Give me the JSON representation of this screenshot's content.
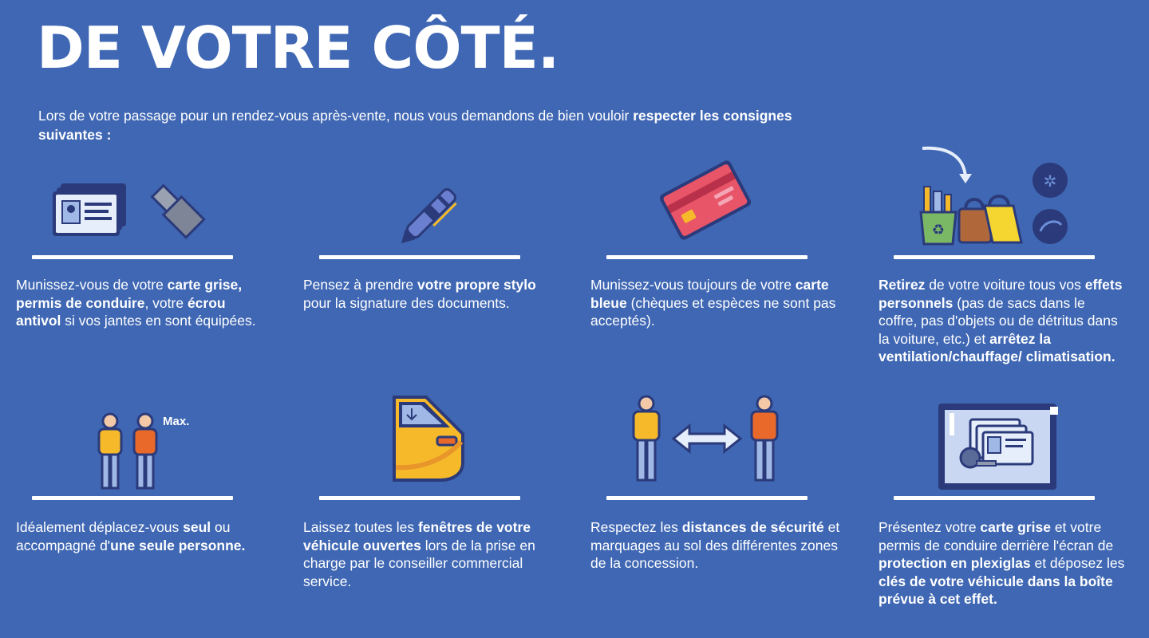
{
  "title": "DE VOTRE CÔTÉ.",
  "intro": {
    "before": "Lors de votre passage pour un rendez-vous après-vente, nous vous demandons de bien vouloir ",
    "bold": "respecter les consignes suivantes :"
  },
  "items": [
    {
      "parts": [
        [
          "Munissez-vous de votre ",
          false
        ],
        [
          "carte grise, permis de conduire",
          true
        ],
        [
          ", votre ",
          false
        ],
        [
          "écrou antivol",
          true
        ],
        [
          " si vos jantes en sont équipées.",
          false
        ]
      ],
      "icon": "id-card-and-lug-nut-icon"
    },
    {
      "parts": [
        [
          "Pensez à prendre ",
          false
        ],
        [
          "votre propre stylo",
          true
        ],
        [
          " pour la signature des documents.",
          false
        ]
      ],
      "icon": "pen-icon"
    },
    {
      "parts": [
        [
          "Munissez-vous toujours de votre ",
          false
        ],
        [
          "carte bleue",
          true
        ],
        [
          " (chèques et espèces ne sont pas acceptés).",
          false
        ]
      ],
      "icon": "credit-card-icon"
    },
    {
      "parts": [
        [
          "Retirez",
          true
        ],
        [
          " de votre voiture tous vos ",
          false
        ],
        [
          "effets personnels",
          true
        ],
        [
          " (pas de sacs dans le coffre, pas d'objets ou de détritus dans la voiture, etc.) et ",
          false
        ],
        [
          "arrêtez la ventilation/chauffage/ climatisation.",
          true
        ]
      ],
      "icon": "personal-items-icon"
    },
    {
      "parts": [
        [
          "Idéalement déplacez-vous ",
          false
        ],
        [
          "seul",
          true
        ],
        [
          " ou accompagné d'",
          false
        ],
        [
          "une seule personne.",
          true
        ]
      ],
      "icon": "two-people-icon",
      "icon_label": "Max."
    },
    {
      "parts": [
        [
          "Laissez toutes les ",
          false
        ],
        [
          "fenêtres de votre véhicule ouvertes",
          true
        ],
        [
          " lors de la prise en charge par le conseiller commercial service.",
          false
        ]
      ],
      "icon": "car-door-icon"
    },
    {
      "parts": [
        [
          "Respectez les ",
          false
        ],
        [
          "distances de sécurité",
          true
        ],
        [
          " et marquages au sol des différentes zones de la concession.",
          false
        ]
      ],
      "icon": "social-distance-icon"
    },
    {
      "parts": [
        [
          "Présentez votre ",
          false
        ],
        [
          "carte grise",
          true
        ],
        [
          " et votre permis de conduire derrière l'écran de ",
          false
        ],
        [
          "protection en plexiglas",
          true
        ],
        [
          " et déposez les ",
          false
        ],
        [
          "clés de votre véhicule dans la boîte prévue à cet effet.",
          true
        ]
      ],
      "icon": "plexiglass-screen-icon"
    }
  ],
  "colors": {
    "background": "#3f67b3",
    "dark_navy": "#2b3a7a",
    "yellow": "#f5b92a",
    "orange": "#e8692a",
    "red": "#d94a56",
    "light_blue": "#9fb8e6"
  }
}
